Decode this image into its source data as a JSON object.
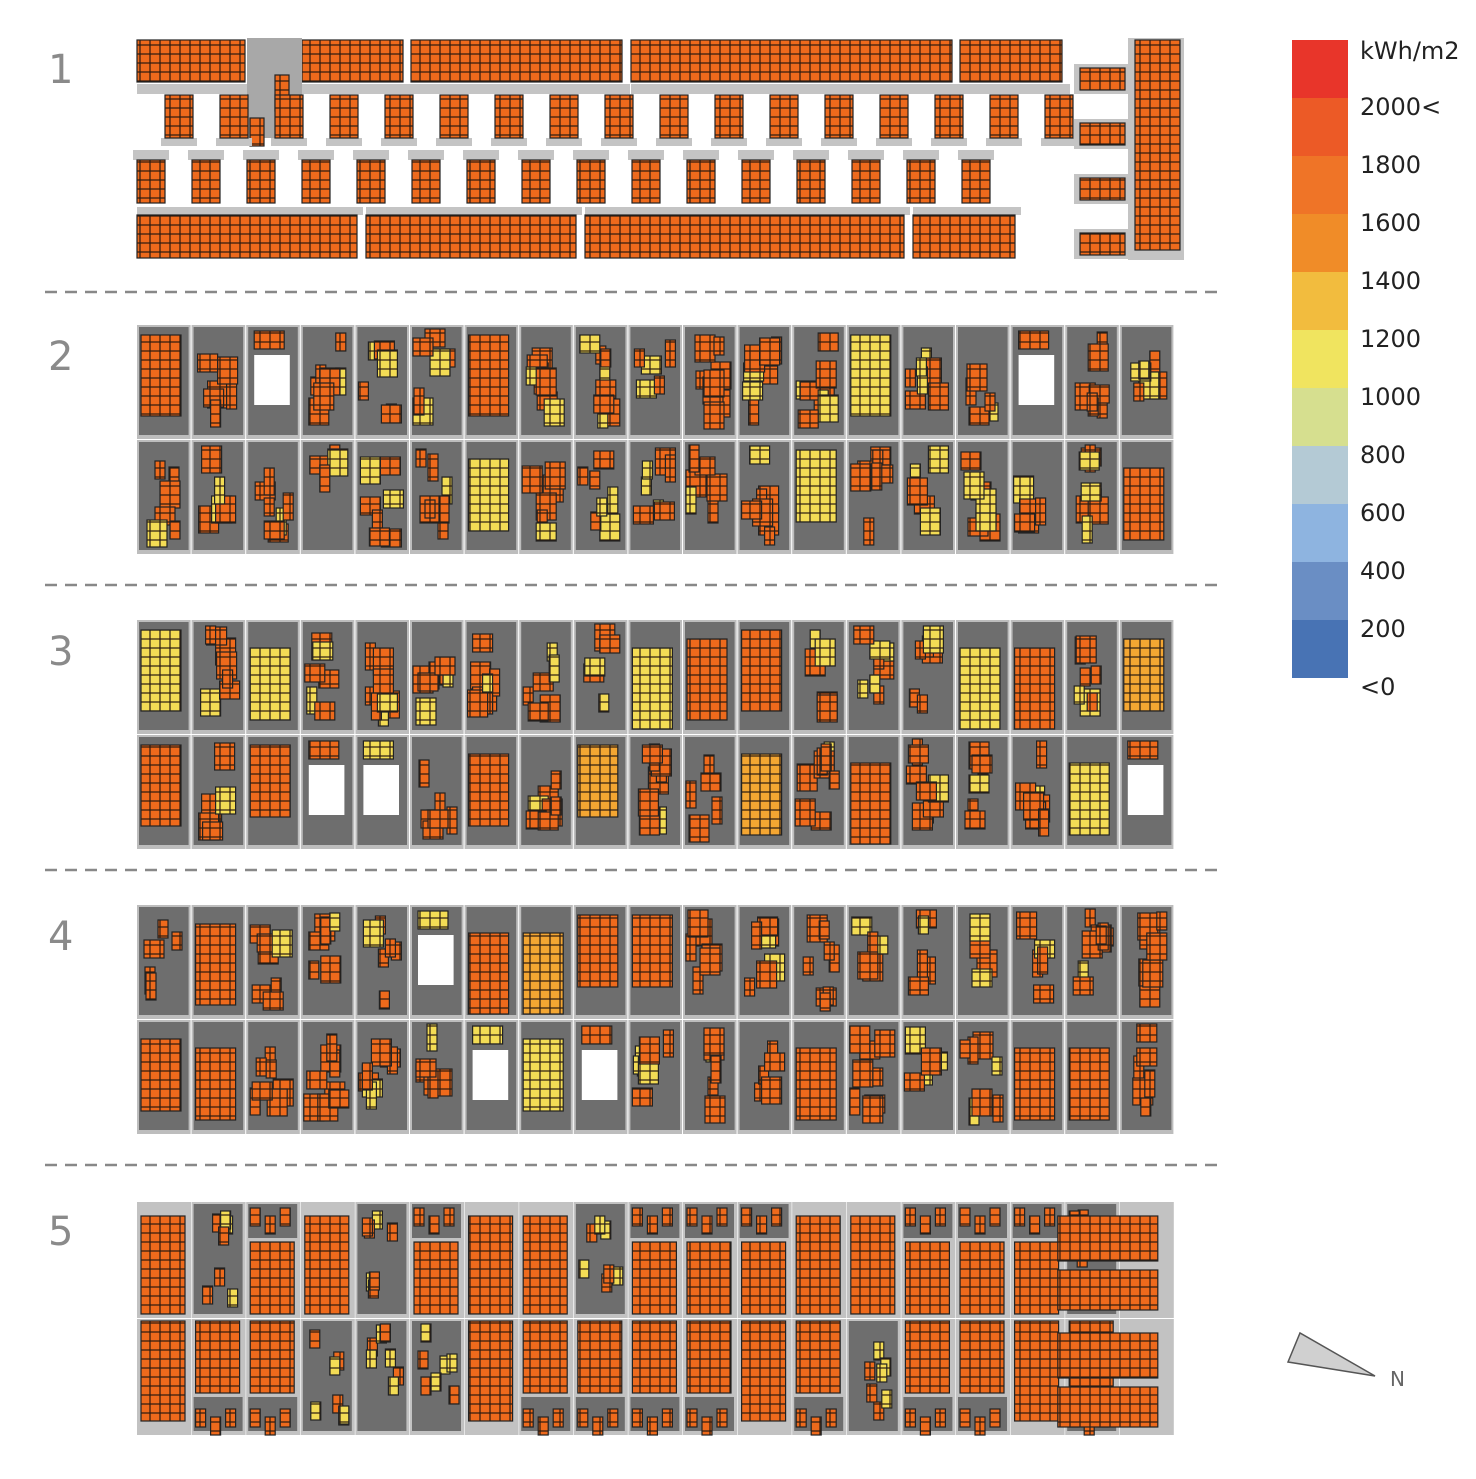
{
  "row_labels": [
    "1",
    "2",
    "3",
    "4",
    "5"
  ],
  "legend": {
    "title": "kWh/m2",
    "labels": [
      "2000<",
      "1800",
      "1600",
      "1400",
      "1200",
      "1000",
      "800",
      "600",
      "400",
      "200",
      "<0"
    ],
    "colors": [
      "#e8352a",
      "#ec5a26",
      "#ef7427",
      "#f08c28",
      "#f2bc3e",
      "#f0e45f",
      "#d6df8f",
      "#b4cad5",
      "#8eb4e0",
      "#6a8ec4",
      "#4873b4"
    ]
  },
  "north_label": "N"
}
